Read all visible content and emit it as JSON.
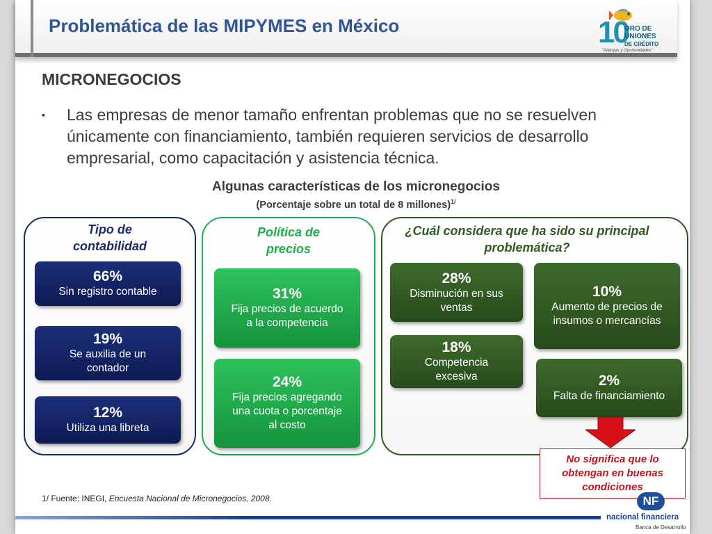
{
  "header": {
    "title": "Problemática de las MIPYMES en México",
    "logo": {
      "big_number": "10",
      "line1": "ORO DE",
      "line2": "UNIONES",
      "line3": "DE CRÉDITO",
      "slogan": "\"Alianzas y Oportunidades\""
    }
  },
  "section": {
    "title": "MICRONEGOCIOS",
    "bullet_symbol": "▪",
    "bullet": "Las empresas de menor tamaño enfrentan problemas que no se resuelven únicamente con financiamiento, también requieren servicios de desarrollo empresarial, como capacitación y asistencia técnica."
  },
  "chart": {
    "title": "Algunas características de los micronegocios",
    "subtitle": "(Porcentaje sobre un total de 8 millones)",
    "subtitle_note": "1/"
  },
  "panels": {
    "contabilidad": {
      "title_line1": "Tipo de",
      "title_line2": "contabilidad",
      "items": [
        {
          "pct": "66%",
          "line1": "Sin registro contable",
          "line2": ""
        },
        {
          "pct": "19%",
          "line1": "Se auxilia de un",
          "line2": "contador"
        },
        {
          "pct": "12%",
          "line1": "Utiliza una libreta",
          "line2": ""
        }
      ]
    },
    "precios": {
      "title_line1": "Política de",
      "title_line2": "precios",
      "items": [
        {
          "pct": "31%",
          "line1": "Fija precios de acuerdo",
          "line2": "a la competencia",
          "line3": ""
        },
        {
          "pct": "24%",
          "line1": "Fija precios agregando",
          "line2": "una cuota o porcentaje",
          "line3": "al costo"
        }
      ]
    },
    "problematica": {
      "title_line1": "¿Cuál considera que ha sido su principal",
      "title_line2": "problemática?",
      "items": [
        {
          "pct": "28%",
          "line1": "Disminución en sus",
          "line2": "ventas"
        },
        {
          "pct": "18%",
          "line1": "Competencia",
          "line2": "excesiva"
        },
        {
          "pct": "10%",
          "line1": "Aumento de precios de",
          "line2": "insumos o mercancías"
        },
        {
          "pct": "2%",
          "line1": "Falta de financiamiento",
          "line2": ""
        }
      ]
    }
  },
  "callout": {
    "line1": "No significa que lo",
    "line2": "obtengan en buenas",
    "line3": "condiciones"
  },
  "footnote": {
    "prefix": "1/ Fuente: INEGI, ",
    "source": "Encuesta Nacional de Micronegocios, 2008."
  },
  "footer_logo": {
    "mark": "NF",
    "name": "nacional financiera",
    "sub": "Banca de Desarrollo"
  },
  "colors": {
    "title_blue": "#2e5597",
    "navy": "#1b2a6b",
    "green": "#1fae4c",
    "dark_green": "#2e5a22",
    "red": "#c0161b"
  }
}
